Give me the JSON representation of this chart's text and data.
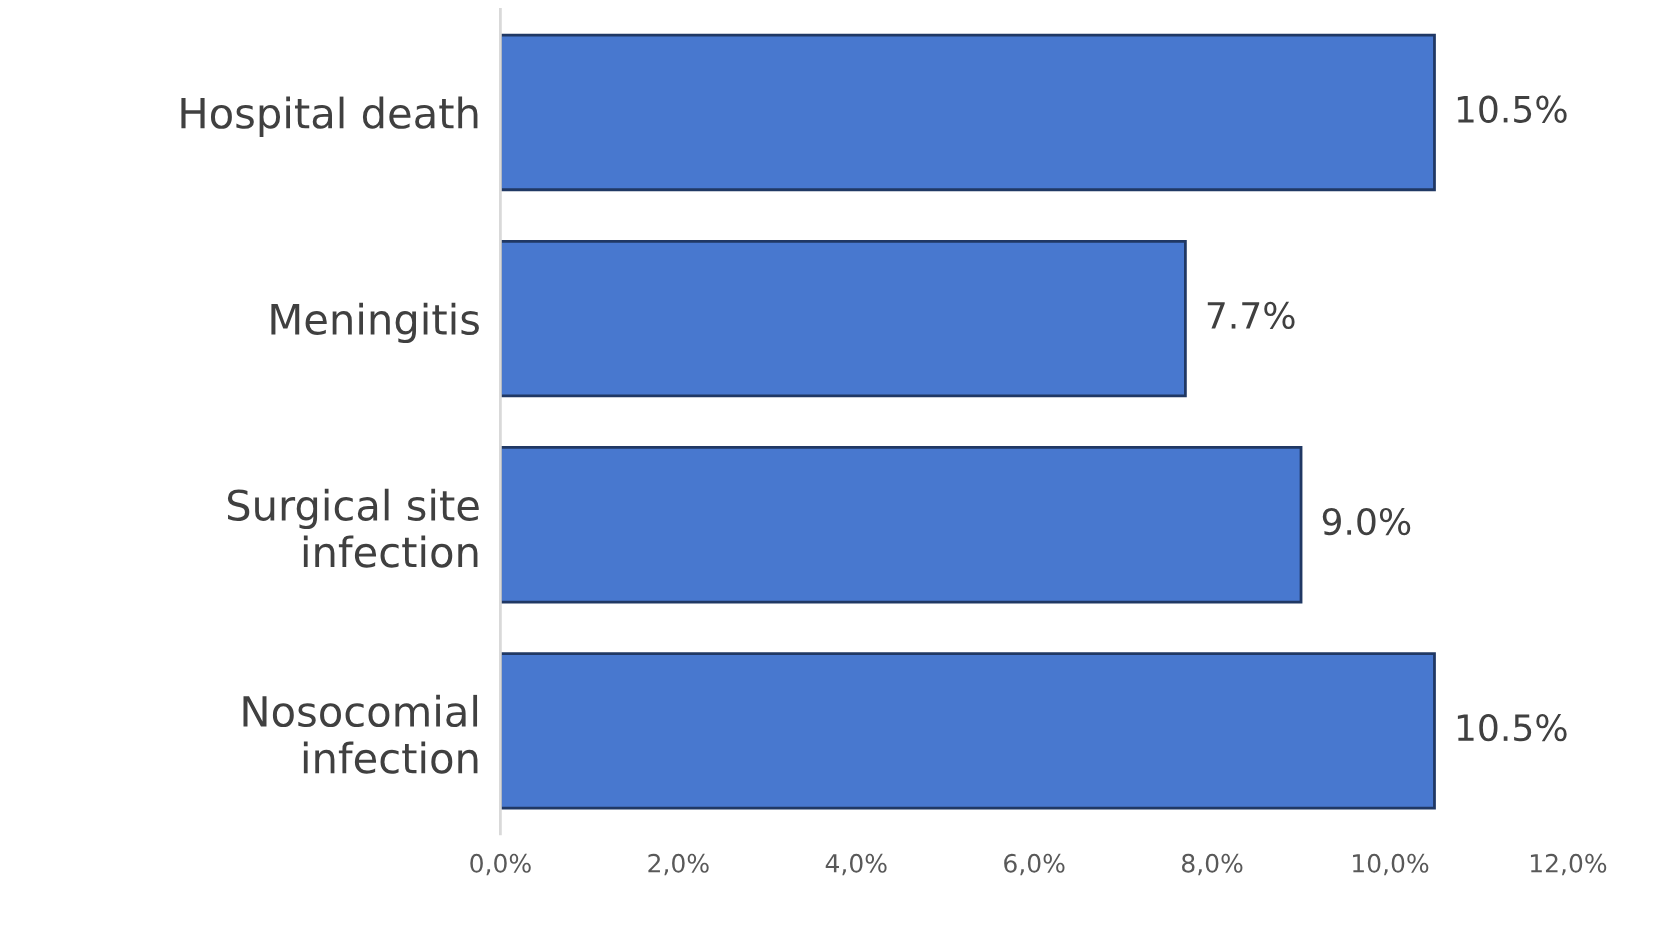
{
  "chart_data": {
    "type": "bar",
    "orientation": "horizontal",
    "categories": [
      "Hospital death",
      "Meningitis",
      "Surgical site infection",
      "Nosocomial infection"
    ],
    "values": [
      10.5,
      7.7,
      9.0,
      10.5
    ],
    "value_labels": [
      "10.5%",
      "7.7%",
      "9.0%",
      "10.5%"
    ],
    "color": "#4878cf",
    "xlim": [
      0,
      12
    ],
    "xticks": [
      {
        "value": 0,
        "label": "0,0%"
      },
      {
        "value": 2,
        "label": "2,0%"
      },
      {
        "value": 4,
        "label": "4,0%"
      },
      {
        "value": 6,
        "label": "6,0%"
      },
      {
        "value": 8,
        "label": "8,0%"
      },
      {
        "value": 10,
        "label": "10,0%"
      },
      {
        "value": 12,
        "label": "12,0%"
      }
    ],
    "grid": false,
    "legend": false
  }
}
